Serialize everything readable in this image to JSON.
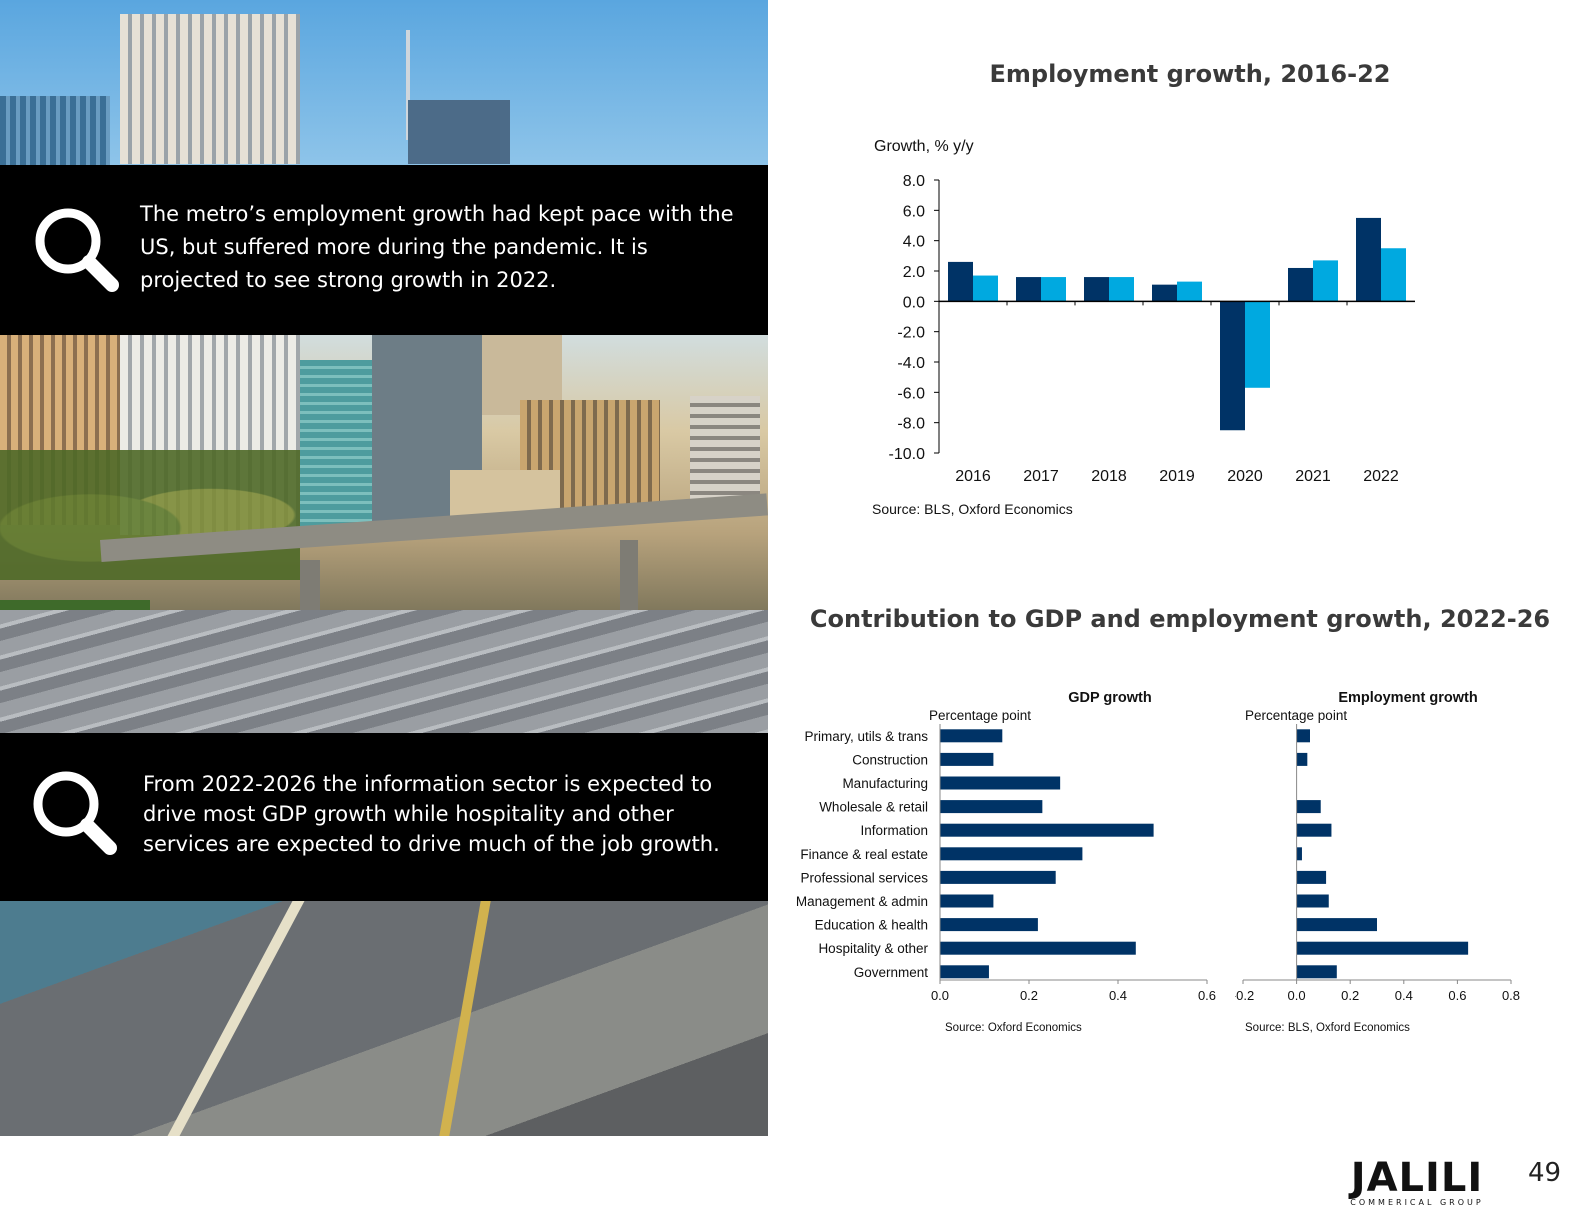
{
  "callouts": [
    {
      "text": "The metro’s employment growth had kept pace with the US, but suffered more during the pandemic. It is projected to see strong growth in 2022."
    },
    {
      "text": "From 2022-2026 the information sector is expected to drive most GDP growth while hospitality and other services are expected to drive much of the job growth."
    }
  ],
  "colors": {
    "dark_series": "#003366",
    "light_series": "#00a9e0",
    "bar_navy": "#003366",
    "callout_bg": "#000000"
  },
  "icons": [
    "magnifier-icon"
  ],
  "employment_chart_title": "Employment growth, 2016-22",
  "contribution_title": "Contribution to GDP and employment growth, 2022-26",
  "chart_data": [
    {
      "type": "bar",
      "ylabel": "Growth, % y/y",
      "categories": [
        "2016",
        "2017",
        "2018",
        "2019",
        "2020",
        "2021",
        "2022"
      ],
      "series": [
        {
          "values": [
            2.6,
            1.6,
            1.6,
            1.1,
            -8.5,
            2.2,
            5.5
          ]
        },
        {
          "values": [
            1.7,
            1.6,
            1.6,
            1.3,
            -5.7,
            2.7,
            3.5
          ]
        }
      ],
      "ylim": [
        -10,
        8
      ],
      "yticks": [
        "8.0",
        "6.0",
        "4.0",
        "2.0",
        "0.0",
        "-2.0",
        "-4.0",
        "-6.0",
        "-8.0",
        "-10.0"
      ],
      "source": "Source: BLS, Oxford Economics"
    },
    {
      "type": "bar",
      "orientation": "horizontal",
      "title": "GDP growth",
      "xlabel": "Percentage point",
      "categories": [
        "Primary, utils & trans",
        "Construction",
        "Manufacturing",
        "Wholesale & retail",
        "Information",
        "Finance & real estate",
        "Professional services",
        "Management & admin",
        "Education & health",
        "Hospitality & other",
        "Government"
      ],
      "values": [
        0.14,
        0.12,
        0.27,
        0.23,
        0.48,
        0.32,
        0.26,
        0.12,
        0.22,
        0.44,
        0.11
      ],
      "xlim": [
        0,
        0.6
      ],
      "xticks": [
        "0.0",
        "0.2",
        "0.4",
        "0.6"
      ],
      "source": "Source: Oxford Economics"
    },
    {
      "type": "bar",
      "orientation": "horizontal",
      "title": "Employment growth",
      "xlabel": "Percentage point",
      "categories": [
        "Primary, utils & trans",
        "Construction",
        "Manufacturing",
        "Wholesale & retail",
        "Information",
        "Finance & real estate",
        "Professional services",
        "Management & admin",
        "Education & health",
        "Hospitality & other",
        "Government"
      ],
      "values": [
        0.05,
        0.04,
        0.0,
        0.09,
        0.13,
        0.02,
        0.11,
        0.12,
        0.3,
        0.64,
        0.15
      ],
      "xlim": [
        -0.2,
        0.8
      ],
      "xticks": [
        "-0.2",
        "0.0",
        "0.2",
        "0.4",
        "0.6",
        "0.8"
      ],
      "source": "Source: BLS, Oxford Economics"
    }
  ],
  "footer": {
    "logo_word": "JALILI",
    "logo_sub": "COMMERICAL GROUP",
    "page_number": "49"
  }
}
